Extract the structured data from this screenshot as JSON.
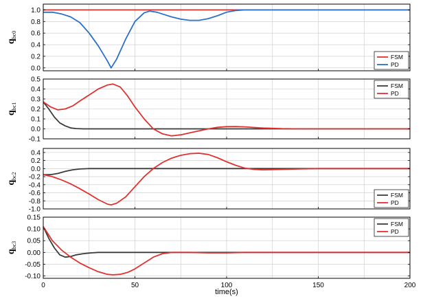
{
  "colors": {
    "FSM": "#e0312f",
    "PD": "#2a6fc9",
    "FSM_dark": "#3a3a3a",
    "grid": "#c8c8c8"
  },
  "xaxis": {
    "label": "time(s)",
    "ticks": [
      "0",
      "50",
      "100",
      "150",
      "200"
    ],
    "range": [
      0,
      200
    ]
  },
  "chart_data": [
    {
      "type": "line",
      "ylabel_main": "q",
      "ylabel_sub": "bc0",
      "ylim": [
        -0.05,
        1.1
      ],
      "yticks": [
        0.0,
        0.2,
        0.4,
        0.6,
        0.8,
        1.0
      ],
      "ytick_labels": [
        "0.0",
        "0.2",
        "0.4",
        "0.6",
        "0.8",
        "1.0"
      ],
      "grid": true,
      "legend_position": "bottom-right",
      "series": [
        {
          "name": "FSM",
          "color_key": "FSM",
          "x": [
            0,
            200
          ],
          "y": [
            1.0,
            1.0
          ]
        },
        {
          "name": "PD",
          "color_key": "PD",
          "x": [
            0,
            5,
            10,
            15,
            20,
            25,
            30,
            35,
            37,
            40,
            45,
            50,
            55,
            58,
            62,
            66,
            70,
            75,
            80,
            85,
            90,
            95,
            100,
            105,
            110,
            115,
            120,
            140,
            160,
            180,
            200
          ],
          "y": [
            0.96,
            0.96,
            0.93,
            0.88,
            0.78,
            0.6,
            0.38,
            0.12,
            0.0,
            0.15,
            0.5,
            0.8,
            0.95,
            0.98,
            0.96,
            0.92,
            0.88,
            0.84,
            0.82,
            0.82,
            0.85,
            0.9,
            0.96,
            0.99,
            1.0,
            1.0,
            1.0,
            1.0,
            1.0,
            1.0,
            1.0
          ]
        }
      ]
    },
    {
      "type": "line",
      "ylabel_main": "q",
      "ylabel_sub": "bc1",
      "ylim": [
        -0.1,
        0.5
      ],
      "yticks": [
        -0.1,
        0.0,
        0.1,
        0.2,
        0.3,
        0.4,
        0.5
      ],
      "ytick_labels": [
        "-0.1",
        "0.0",
        "0.1",
        "0.2",
        "0.3",
        "0.4",
        "0.5"
      ],
      "grid": true,
      "legend_position": "top-right",
      "series": [
        {
          "name": "FSM",
          "color_key": "FSM_dark",
          "x": [
            0,
            3,
            6,
            9,
            12,
            15,
            18,
            22,
            26,
            30,
            200
          ],
          "y": [
            0.27,
            0.2,
            0.12,
            0.06,
            0.03,
            0.01,
            0.003,
            0.0,
            0.0,
            0.0,
            0.0
          ]
        },
        {
          "name": "PD",
          "color_key": "FSM",
          "x": [
            0,
            4,
            8,
            12,
            16,
            20,
            25,
            30,
            35,
            38,
            42,
            46,
            50,
            55,
            60,
            65,
            70,
            75,
            80,
            85,
            90,
            95,
            100,
            105,
            110,
            115,
            120,
            130,
            140,
            150,
            200
          ],
          "y": [
            0.27,
            0.22,
            0.19,
            0.2,
            0.23,
            0.28,
            0.34,
            0.4,
            0.44,
            0.45,
            0.42,
            0.33,
            0.22,
            0.1,
            0.0,
            -0.05,
            -0.07,
            -0.06,
            -0.04,
            -0.02,
            0.0,
            0.015,
            0.022,
            0.023,
            0.02,
            0.014,
            0.008,
            0.002,
            0.0,
            0.0,
            0.0
          ]
        }
      ]
    },
    {
      "type": "line",
      "ylabel_main": "q",
      "ylabel_sub": "bc2",
      "ylim": [
        -1.0,
        0.5
      ],
      "yticks": [
        -1.0,
        -0.8,
        -0.6,
        -0.4,
        -0.2,
        0.0,
        0.2,
        0.4
      ],
      "ytick_labels": [
        "-1.0",
        "-0.8",
        "-0.6",
        "-0.4",
        "-0.2",
        "0.0",
        "0.2",
        "0.4"
      ],
      "grid": true,
      "legend_position": "bottom-right",
      "series": [
        {
          "name": "FSM",
          "color_key": "FSM_dark",
          "x": [
            0,
            4,
            8,
            12,
            16,
            20,
            25,
            30,
            200
          ],
          "y": [
            -0.15,
            -0.15,
            -0.12,
            -0.07,
            -0.03,
            -0.01,
            0.0,
            0.0,
            0.0
          ]
        },
        {
          "name": "PD",
          "color_key": "FSM",
          "x": [
            0,
            5,
            10,
            15,
            20,
            25,
            30,
            35,
            37,
            40,
            45,
            50,
            55,
            60,
            65,
            70,
            75,
            80,
            85,
            90,
            95,
            100,
            105,
            110,
            115,
            120,
            130,
            140,
            150,
            160,
            200
          ],
          "y": [
            -0.15,
            -0.2,
            -0.28,
            -0.38,
            -0.5,
            -0.63,
            -0.77,
            -0.88,
            -0.9,
            -0.86,
            -0.7,
            -0.45,
            -0.2,
            0.0,
            0.15,
            0.26,
            0.33,
            0.37,
            0.38,
            0.35,
            0.27,
            0.17,
            0.08,
            0.01,
            -0.02,
            -0.03,
            -0.02,
            -0.01,
            0.0,
            0.0,
            0.0
          ]
        }
      ]
    },
    {
      "type": "line",
      "ylabel_main": "q",
      "ylabel_sub": "bc3",
      "ylim": [
        -0.11,
        0.15
      ],
      "yticks": [
        -0.1,
        -0.05,
        0.0,
        0.05,
        0.1,
        0.15
      ],
      "ytick_labels": [
        "-0.10",
        "-0.05",
        "0.00",
        "0.05",
        "0.10",
        "0.15"
      ],
      "grid": true,
      "legend_position": "top-right",
      "series": [
        {
          "name": "FSM",
          "color_key": "FSM_dark",
          "x": [
            0,
            3,
            6,
            9,
            12,
            15,
            18,
            22,
            26,
            30,
            35,
            200
          ],
          "y": [
            0.11,
            0.06,
            0.02,
            -0.01,
            -0.02,
            -0.017,
            -0.01,
            -0.005,
            -0.002,
            0.0,
            0.0,
            0.0
          ]
        },
        {
          "name": "PD",
          "color_key": "FSM",
          "x": [
            0,
            5,
            10,
            15,
            20,
            25,
            30,
            35,
            38,
            42,
            46,
            50,
            55,
            60,
            65,
            70,
            80,
            90,
            100,
            110,
            120,
            140,
            200
          ],
          "y": [
            0.11,
            0.05,
            0.01,
            -0.02,
            -0.045,
            -0.065,
            -0.082,
            -0.093,
            -0.095,
            -0.093,
            -0.085,
            -0.07,
            -0.045,
            -0.02,
            -0.005,
            0.0,
            0.0,
            -0.002,
            -0.002,
            0.0,
            0.0,
            0.0,
            0.0
          ]
        }
      ]
    }
  ]
}
